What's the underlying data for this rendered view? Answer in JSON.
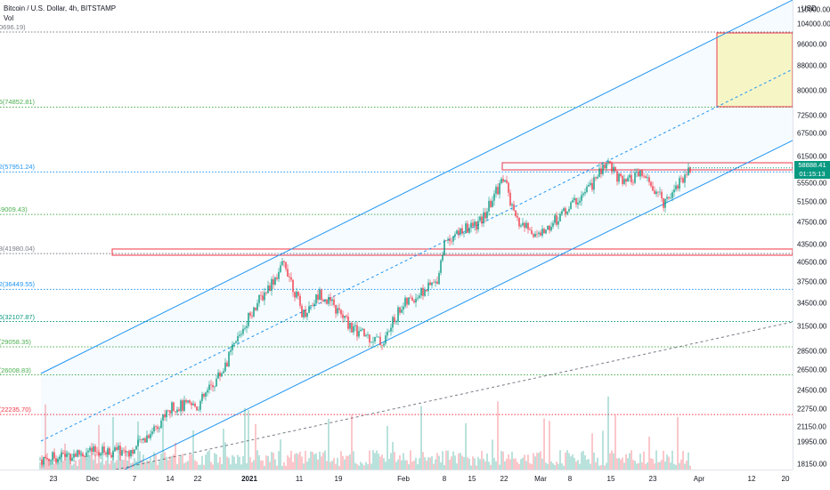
{
  "header": {
    "symbol_line": "Bitcoin / U.S. Dollar, 4h, BITSTAMP",
    "volume_label": "Vol"
  },
  "currency_unit": "USD",
  "last_price": {
    "price": "58888.41",
    "countdown": "01:15:13",
    "color": "#089981"
  },
  "fib_levels": [
    {
      "label": "0(100696.19)",
      "price": 100696.19,
      "color": "#787b86"
    },
    {
      "label": "0.236(74852.81)",
      "price": 74852.81,
      "color": "#4caf50"
    },
    {
      "label": "0.382(57951.24)",
      "price": 57951.24,
      "color": "#2196f3"
    },
    {
      "label": "0.5(49009.43)",
      "price": 49009.43,
      "color": "#4caf50"
    },
    {
      "label": "0.618(41980.04)",
      "price": 41980.04,
      "color": "#787b86"
    },
    {
      "label": "0.702(36449.55)",
      "price": 36449.55,
      "color": "#2196f3"
    },
    {
      "label": "0.786(32107.87)",
      "price": 32107.87,
      "color": "#089981"
    },
    {
      "label": "0.86(29058.35)",
      "price": 29058.35,
      "color": "#4caf50"
    },
    {
      "label": "0.94(26008.83)",
      "price": 26008.83,
      "color": "#4caf50"
    },
    {
      "label": "1.06(22235.70)",
      "price": 22235.7,
      "color": "#f23645"
    }
  ],
  "price_axis": [
    "110000.00",
    "104000.00",
    "96000.00",
    "88000.00",
    "80000.00",
    "72500.00",
    "67500.00",
    "61500.00",
    "55500.00",
    "51500.00",
    "47500.00",
    "43500.00",
    "40500.00",
    "37500.00",
    "34500.00",
    "31500.00",
    "28500.00",
    "26500.00",
    "24500.00",
    "22750.00",
    "21150.00",
    "19950.00",
    "18150.00"
  ],
  "time_axis": [
    {
      "label": "23",
      "bold": false
    },
    {
      "label": "Dec",
      "bold": false
    },
    {
      "label": "7",
      "bold": false
    },
    {
      "label": "14",
      "bold": false
    },
    {
      "label": "22",
      "bold": false
    },
    {
      "label": "2021",
      "bold": true
    },
    {
      "label": "11",
      "bold": false
    },
    {
      "label": "19",
      "bold": false
    },
    {
      "label": "Feb",
      "bold": false
    },
    {
      "label": "8",
      "bold": false
    },
    {
      "label": "15",
      "bold": false
    },
    {
      "label": "22",
      "bold": false
    },
    {
      "label": "Mar",
      "bold": false
    },
    {
      "label": "8",
      "bold": false
    },
    {
      "label": "15",
      "bold": false
    },
    {
      "label": "23",
      "bold": false
    },
    {
      "label": "Apr",
      "bold": false
    },
    {
      "label": "12",
      "bold": false
    },
    {
      "label": "20",
      "bold": false
    }
  ],
  "colors": {
    "up": "#089981",
    "down": "#f23645",
    "channel": "#2196f3",
    "zone": "#f23645",
    "target_fill": "#fff9c4"
  },
  "chart_data": {
    "type": "candlestick",
    "symbol": "Bitcoin / U.S. Dollar",
    "interval": "4h",
    "exchange": "BITSTAMP",
    "price_range": [
      18150,
      110000
    ],
    "scale": "log",
    "grid": false,
    "x": [
      "2020-11-21",
      "2020-11-28",
      "2020-12-05",
      "2020-12-12",
      "2020-12-19",
      "2020-12-26",
      "2021-01-02",
      "2021-01-08",
      "2021-01-14",
      "2021-01-21",
      "2021-01-28",
      "2021-02-04",
      "2021-02-11",
      "2021-02-17",
      "2021-02-21",
      "2021-02-23",
      "2021-02-28",
      "2021-03-06",
      "2021-03-13",
      "2021-03-18",
      "2021-03-23",
      "2021-03-25",
      "2021-03-29"
    ],
    "close": [
      18600,
      19000,
      19200,
      19300,
      23000,
      26500,
      33000,
      40500,
      36000,
      32000,
      33500,
      37500,
      46500,
      52500,
      57000,
      48000,
      45500,
      52000,
      60500,
      57500,
      54000,
      51500,
      58888
    ],
    "last": 58888.41
  }
}
